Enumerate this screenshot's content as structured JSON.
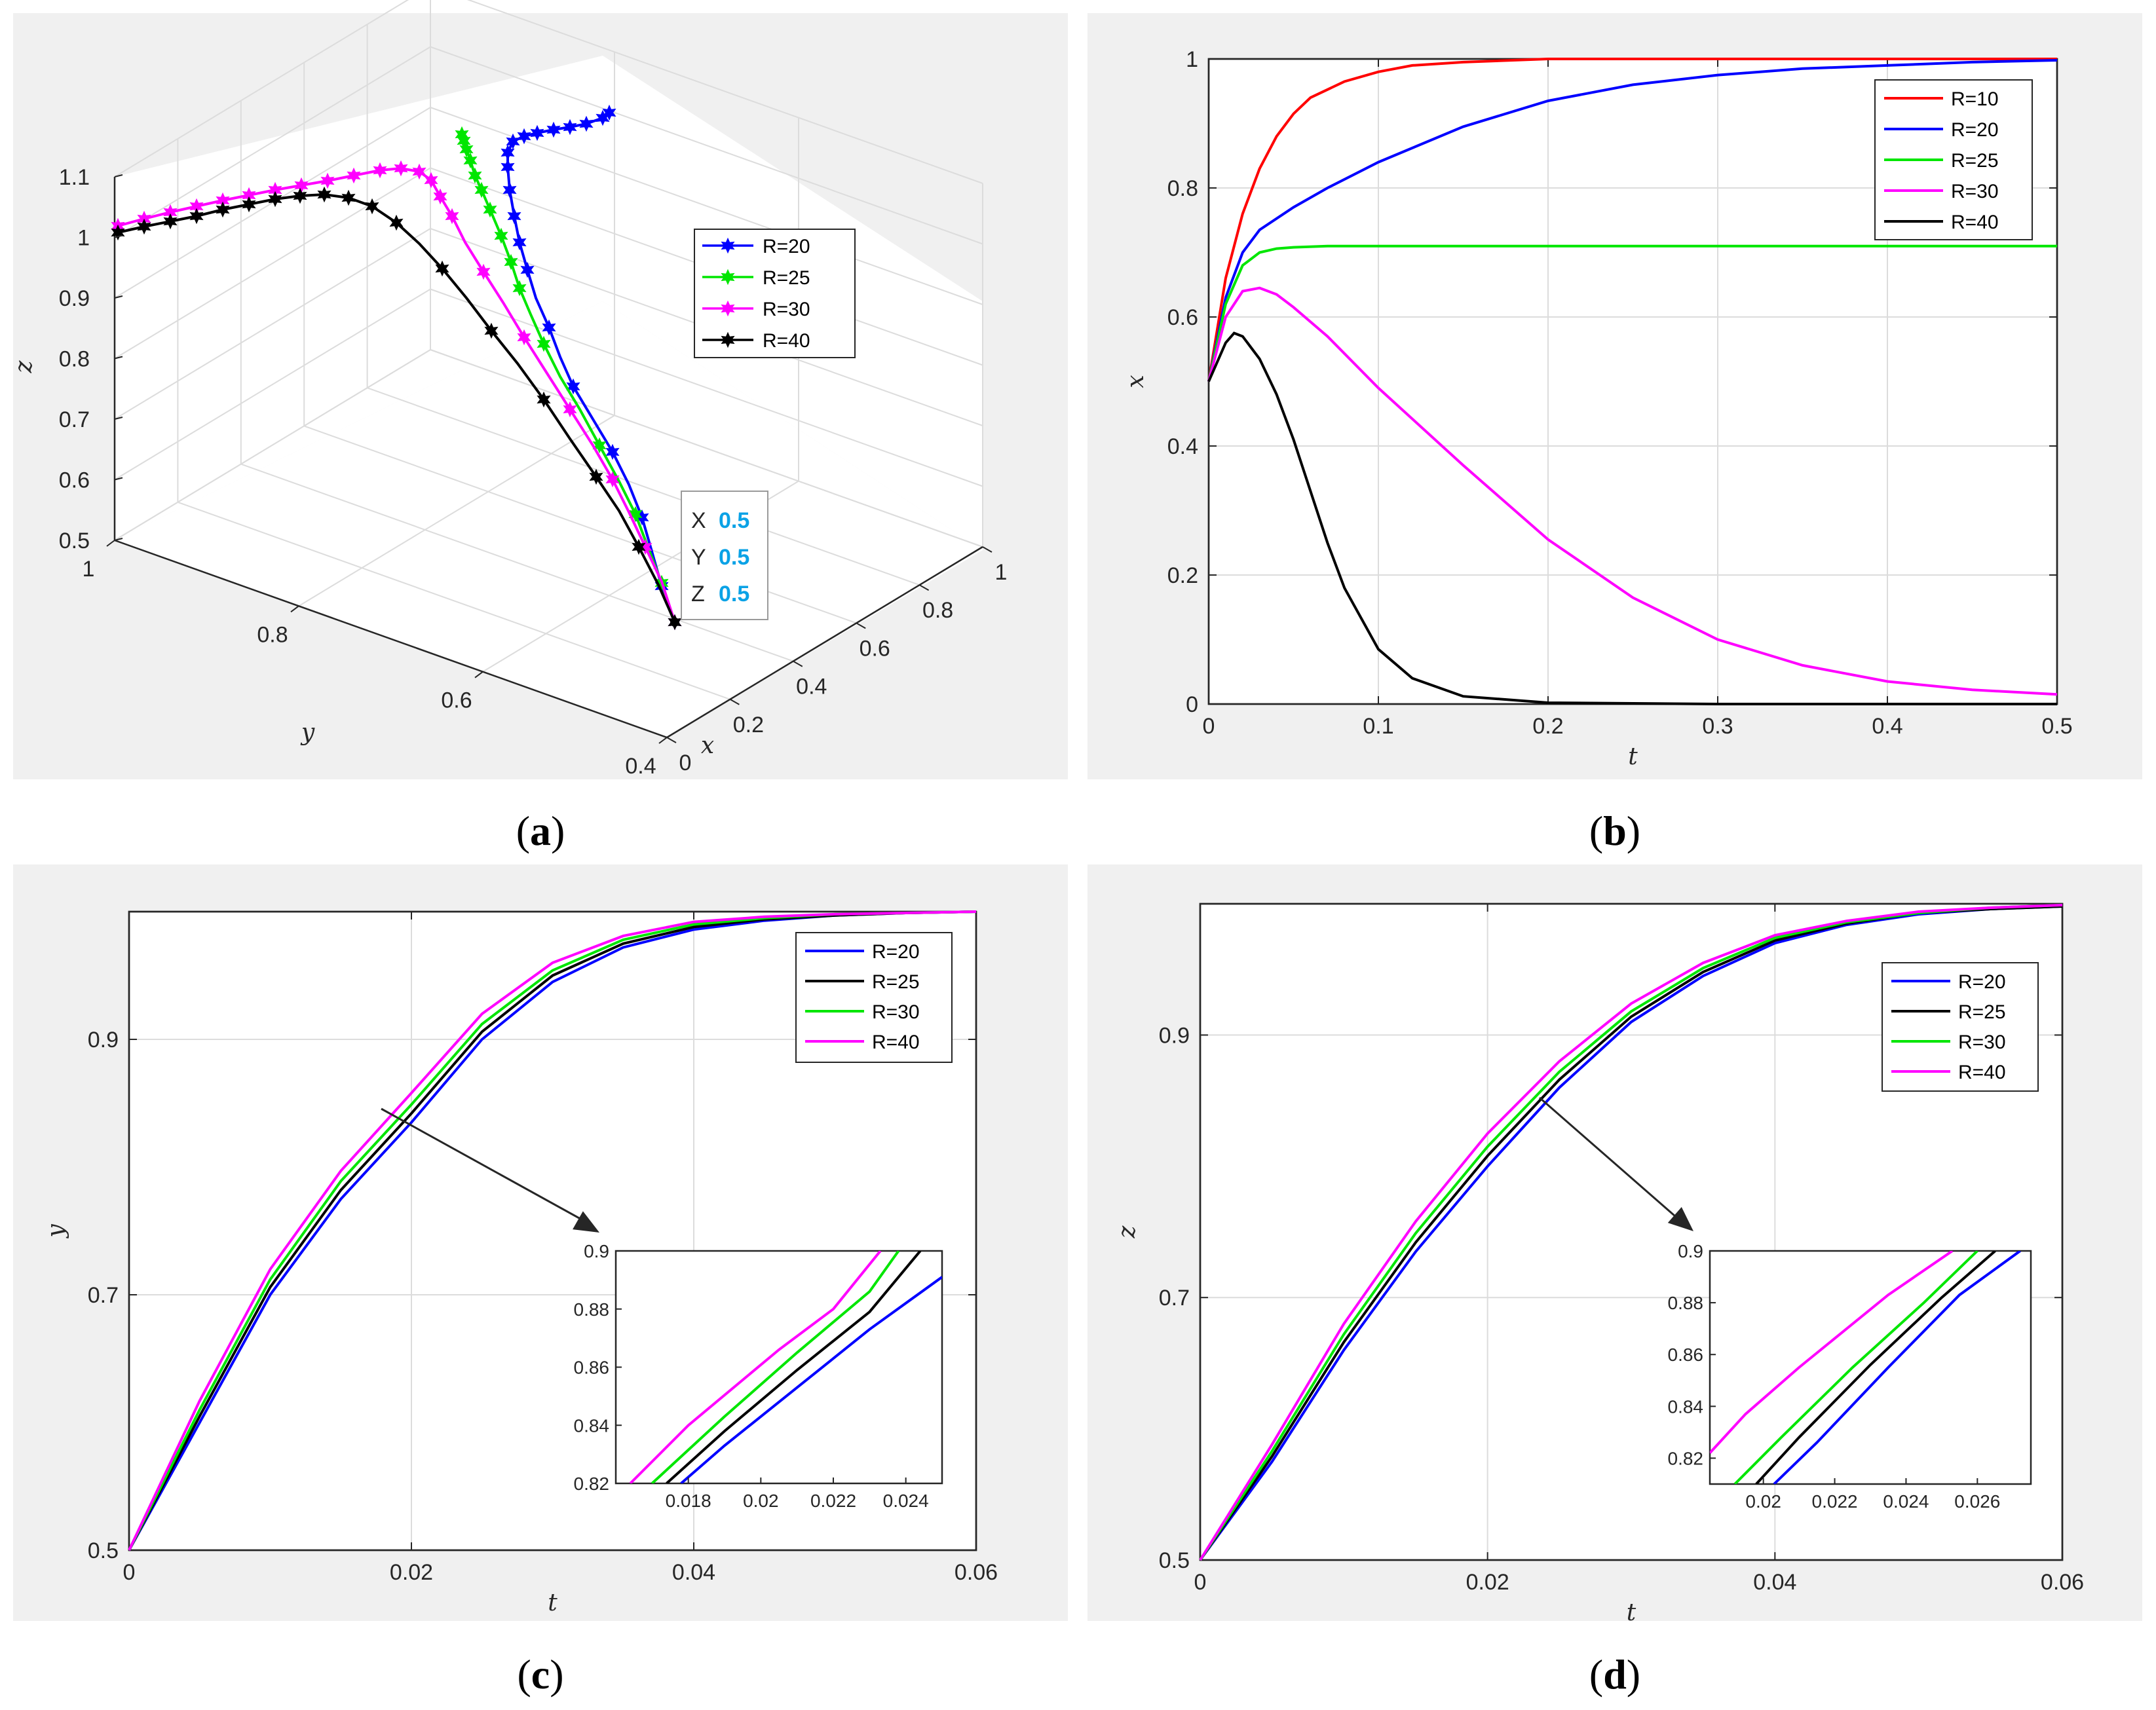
{
  "chart_data": [
    {
      "id": "a",
      "panel_label": "a",
      "type": "line3d",
      "xlabel": "x",
      "ylabel": "y",
      "zlabel": "z",
      "xlim": [
        0,
        1
      ],
      "ylim": [
        0.4,
        1
      ],
      "zlim": [
        0.5,
        1.1
      ],
      "xticks": [
        "0",
        "0.2",
        "0.4",
        "0.6",
        "0.8",
        "1"
      ],
      "yticks": [
        "0.4",
        "0.6",
        "0.8",
        "1"
      ],
      "zticks": [
        "0.5",
        "0.6",
        "0.7",
        "0.8",
        "0.9",
        "1",
        "1.1"
      ],
      "legend": "right",
      "series": [
        {
          "name": "R=20",
          "color": "#0000ff",
          "marker": "hexagram"
        },
        {
          "name": "R=25",
          "color": "#00e600",
          "marker": "hexagram"
        },
        {
          "name": "R=30",
          "color": "#ff00ff",
          "marker": "hexagram"
        },
        {
          "name": "R=40",
          "color": "#000000",
          "marker": "hexagram"
        }
      ],
      "datatip": {
        "x_label": "X",
        "x_value": "0.5",
        "y_label": "Y",
        "y_value": "0.5",
        "z_label": "Z",
        "z_value": "0.5"
      }
    },
    {
      "id": "b",
      "panel_label": "b",
      "type": "line",
      "xlabel": "t",
      "ylabel": "x",
      "xlim": [
        0,
        0.5
      ],
      "ylim": [
        0,
        1
      ],
      "xticks": [
        0,
        0.1,
        0.2,
        0.3,
        0.4,
        0.5
      ],
      "xtick_labels": [
        "0",
        "0.1",
        "0.2",
        "0.3",
        "0.4",
        "0.5"
      ],
      "yticks": [
        0,
        0.2,
        0.4,
        0.6,
        0.8,
        1
      ],
      "ytick_labels": [
        "0",
        "0.2",
        "0.4",
        "0.6",
        "0.8",
        "1"
      ],
      "legend": "top-right",
      "series": [
        {
          "name": "R=10",
          "color": "#ff0000",
          "x": [
            0,
            0.01,
            0.02,
            0.03,
            0.04,
            0.05,
            0.06,
            0.08,
            0.1,
            0.12,
            0.15,
            0.2,
            0.25,
            0.3,
            0.4,
            0.5
          ],
          "y": [
            0.5,
            0.66,
            0.76,
            0.83,
            0.88,
            0.915,
            0.94,
            0.965,
            0.98,
            0.99,
            0.995,
            1,
            1,
            1,
            1,
            1
          ]
        },
        {
          "name": "R=20",
          "color": "#0000ff",
          "x": [
            0,
            0.01,
            0.02,
            0.03,
            0.05,
            0.07,
            0.1,
            0.15,
            0.2,
            0.25,
            0.3,
            0.35,
            0.4,
            0.45,
            0.5
          ],
          "y": [
            0.5,
            0.63,
            0.7,
            0.735,
            0.77,
            0.8,
            0.84,
            0.895,
            0.935,
            0.96,
            0.975,
            0.985,
            0.99,
            0.995,
            0.998
          ]
        },
        {
          "name": "R=25",
          "color": "#00e600",
          "x": [
            0,
            0.01,
            0.02,
            0.03,
            0.04,
            0.05,
            0.07,
            0.1,
            0.2,
            0.3,
            0.4,
            0.5
          ],
          "y": [
            0.5,
            0.62,
            0.68,
            0.7,
            0.706,
            0.708,
            0.71,
            0.71,
            0.71,
            0.71,
            0.71,
            0.71
          ]
        },
        {
          "name": "R=30",
          "color": "#ff00ff",
          "x": [
            0,
            0.01,
            0.02,
            0.03,
            0.04,
            0.05,
            0.07,
            0.1,
            0.15,
            0.2,
            0.25,
            0.3,
            0.35,
            0.4,
            0.45,
            0.5
          ],
          "y": [
            0.5,
            0.6,
            0.64,
            0.645,
            0.635,
            0.615,
            0.57,
            0.49,
            0.37,
            0.255,
            0.165,
            0.1,
            0.06,
            0.035,
            0.022,
            0.015
          ]
        },
        {
          "name": "R=40",
          "color": "#000000",
          "x": [
            0,
            0.01,
            0.015,
            0.02,
            0.03,
            0.04,
            0.05,
            0.06,
            0.07,
            0.08,
            0.1,
            0.12,
            0.15,
            0.2,
            0.3,
            0.4,
            0.5
          ],
          "y": [
            0.5,
            0.56,
            0.575,
            0.57,
            0.535,
            0.48,
            0.41,
            0.33,
            0.25,
            0.18,
            0.085,
            0.04,
            0.012,
            0.002,
            0,
            0,
            0
          ]
        }
      ]
    },
    {
      "id": "c",
      "panel_label": "c",
      "type": "line",
      "xlabel": "t",
      "ylabel": "y",
      "xlim": [
        0,
        0.06
      ],
      "ylim": [
        0.5,
        1
      ],
      "xticks": [
        0,
        0.02,
        0.04,
        0.06
      ],
      "xtick_labels": [
        "0",
        "0.02",
        "0.04",
        "0.06"
      ],
      "yticks": [
        0.5,
        0.7,
        0.9
      ],
      "ytick_labels": [
        "0.5",
        "0.7",
        "0.9"
      ],
      "legend": "top-right",
      "series": [
        {
          "name": "R=20",
          "color": "#0000ff",
          "x": [
            0,
            0.005,
            0.01,
            0.015,
            0.02,
            0.025,
            0.03,
            0.035,
            0.04,
            0.045,
            0.05,
            0.055,
            0.06
          ],
          "y": [
            0.5,
            0.6,
            0.7,
            0.775,
            0.835,
            0.9,
            0.945,
            0.972,
            0.986,
            0.993,
            0.997,
            0.999,
            1.0
          ]
        },
        {
          "name": "R=25",
          "color": "#000000",
          "x": [
            0,
            0.005,
            0.01,
            0.015,
            0.02,
            0.025,
            0.03,
            0.035,
            0.04,
            0.045,
            0.05,
            0.055,
            0.06
          ],
          "y": [
            0.5,
            0.605,
            0.706,
            0.782,
            0.842,
            0.906,
            0.95,
            0.975,
            0.988,
            0.994,
            0.997,
            0.999,
            1.0
          ]
        },
        {
          "name": "R=30",
          "color": "#00e600",
          "x": [
            0,
            0.005,
            0.01,
            0.015,
            0.02,
            0.025,
            0.03,
            0.035,
            0.04,
            0.045,
            0.05,
            0.055,
            0.06
          ],
          "y": [
            0.5,
            0.61,
            0.712,
            0.789,
            0.849,
            0.912,
            0.954,
            0.978,
            0.99,
            0.995,
            0.998,
            0.999,
            1.0
          ]
        },
        {
          "name": "R=40",
          "color": "#ff00ff",
          "x": [
            0,
            0.005,
            0.01,
            0.015,
            0.02,
            0.025,
            0.03,
            0.035,
            0.04,
            0.045,
            0.05,
            0.055,
            0.06
          ],
          "y": [
            0.5,
            0.617,
            0.72,
            0.797,
            0.858,
            0.92,
            0.96,
            0.981,
            0.992,
            0.996,
            0.998,
            0.999,
            1.0
          ]
        }
      ],
      "inset": {
        "xlim": [
          0.016,
          0.025
        ],
        "ylim": [
          0.82,
          0.9
        ],
        "xticks": [
          0.018,
          0.02,
          0.022,
          0.024
        ],
        "xtick_labels": [
          "0.018",
          "0.02",
          "0.022",
          "0.024"
        ],
        "yticks": [
          0.82,
          0.84,
          0.86,
          0.88,
          0.9
        ],
        "ytick_labels": [
          "0.82",
          "0.84",
          "0.86",
          "0.88",
          "0.9"
        ],
        "series": [
          {
            "name": "R=20",
            "x": [
              0.0178,
              0.019,
              0.021,
              0.023,
              0.025
            ],
            "y": [
              0.82,
              0.833,
              0.853,
              0.873,
              0.891
            ]
          },
          {
            "name": "R=25",
            "x": [
              0.0174,
              0.019,
              0.021,
              0.023,
              0.0244
            ],
            "y": [
              0.82,
              0.838,
              0.859,
              0.879,
              0.9
            ]
          },
          {
            "name": "R=30",
            "x": [
              0.017,
              0.019,
              0.021,
              0.023,
              0.0238
            ],
            "y": [
              0.82,
              0.843,
              0.865,
              0.886,
              0.9
            ]
          },
          {
            "name": "R=40",
            "x": [
              0.0164,
              0.018,
              0.0205,
              0.022,
              0.0233
            ],
            "y": [
              0.82,
              0.84,
              0.866,
              0.88,
              0.9
            ]
          }
        ]
      }
    },
    {
      "id": "d",
      "panel_label": "d",
      "type": "line",
      "xlabel": "t",
      "ylabel": "z",
      "xlim": [
        0,
        0.06
      ],
      "ylim": [
        0.5,
        1
      ],
      "xticks": [
        0,
        0.02,
        0.04,
        0.06
      ],
      "xtick_labels": [
        "0",
        "0.02",
        "0.04",
        "0.06"
      ],
      "yticks": [
        0.5,
        0.7,
        0.9
      ],
      "ytick_labels": [
        "0.5",
        "0.7",
        "0.9"
      ],
      "legend": "top-right",
      "series": [
        {
          "name": "R=20",
          "color": "#0000ff",
          "x": [
            0,
            0.005,
            0.01,
            0.015,
            0.02,
            0.025,
            0.03,
            0.035,
            0.04,
            0.045,
            0.05,
            0.055,
            0.06
          ],
          "y": [
            0.5,
            0.575,
            0.66,
            0.735,
            0.8,
            0.86,
            0.91,
            0.945,
            0.97,
            0.984,
            0.992,
            0.996,
            0.998
          ]
        },
        {
          "name": "R=25",
          "color": "#000000",
          "x": [
            0,
            0.005,
            0.01,
            0.015,
            0.02,
            0.025,
            0.03,
            0.035,
            0.04,
            0.045,
            0.05,
            0.055,
            0.06
          ],
          "y": [
            0.5,
            0.579,
            0.666,
            0.742,
            0.808,
            0.866,
            0.914,
            0.948,
            0.972,
            0.985,
            0.993,
            0.996,
            0.998
          ]
        },
        {
          "name": "R=30",
          "color": "#00e600",
          "x": [
            0,
            0.005,
            0.01,
            0.015,
            0.02,
            0.025,
            0.03,
            0.035,
            0.04,
            0.045,
            0.05,
            0.055,
            0.06
          ],
          "y": [
            0.5,
            0.583,
            0.672,
            0.749,
            0.815,
            0.872,
            0.918,
            0.951,
            0.974,
            0.986,
            0.993,
            0.997,
            0.999
          ]
        },
        {
          "name": "R=40",
          "color": "#ff00ff",
          "x": [
            0,
            0.005,
            0.01,
            0.015,
            0.02,
            0.025,
            0.03,
            0.035,
            0.04,
            0.045,
            0.05,
            0.055,
            0.06
          ],
          "y": [
            0.5,
            0.588,
            0.68,
            0.758,
            0.825,
            0.88,
            0.924,
            0.955,
            0.976,
            0.987,
            0.994,
            0.997,
            0.999
          ]
        }
      ],
      "inset": {
        "xlim": [
          0.0185,
          0.0275
        ],
        "ylim": [
          0.81,
          0.9
        ],
        "xticks": [
          0.02,
          0.022,
          0.024,
          0.026
        ],
        "xtick_labels": [
          "0.02",
          "0.022",
          "0.024",
          "0.026"
        ],
        "yticks": [
          0.82,
          0.84,
          0.86,
          0.88,
          0.9
        ],
        "ytick_labels": [
          "0.82",
          "0.84",
          "0.86",
          "0.88",
          "0.9"
        ],
        "series": [
          {
            "name": "R=20",
            "x": [
              0.0203,
              0.0215,
              0.0235,
              0.0255,
              0.0272
            ],
            "y": [
              0.81,
              0.826,
              0.855,
              0.883,
              0.9
            ]
          },
          {
            "name": "R=25",
            "x": [
              0.0198,
              0.021,
              0.023,
              0.025,
              0.0265
            ],
            "y": [
              0.81,
              0.828,
              0.856,
              0.882,
              0.9
            ]
          },
          {
            "name": "R=30",
            "x": [
              0.0192,
              0.0205,
              0.0225,
              0.0245,
              0.026
            ],
            "y": [
              0.81,
              0.828,
              0.855,
              0.88,
              0.9
            ]
          },
          {
            "name": "R=40",
            "x": [
              0.0185,
              0.0195,
              0.021,
              0.0235,
              0.0253
            ],
            "y": [
              0.822,
              0.837,
              0.855,
              0.883,
              0.9
            ]
          }
        ]
      }
    }
  ]
}
